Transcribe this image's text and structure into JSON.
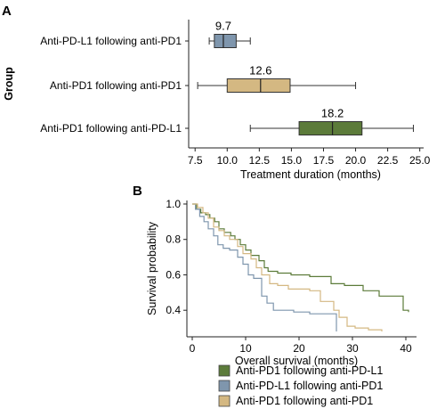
{
  "chart_data": [
    {
      "type": "boxplot",
      "panel_label": "A",
      "orientation": "horizontal",
      "xlabel": "Treatment duration (months)",
      "ylabel": "Group",
      "xlim": [
        7.0,
        25.3
      ],
      "xticks": [
        "7.5",
        "10.0",
        "12.5",
        "15.0",
        "17.5",
        "20.0",
        "22.5",
        "25.0"
      ],
      "xtick_values": [
        7.5,
        10.0,
        12.5,
        15.0,
        17.5,
        20.0,
        22.5,
        25.0
      ],
      "grid": false,
      "boxes": [
        {
          "category": "Anti-PD-L1 following anti-PD1",
          "min": 8.6,
          "q1": 9.0,
          "median": 9.7,
          "q3": 10.7,
          "max": 11.8,
          "median_label": "9.7",
          "color": "#7f96ad"
        },
        {
          "category": "Anti-PD1 following anti-PD1",
          "min": 7.7,
          "q1": 10.0,
          "median": 12.6,
          "q3": 14.9,
          "max": 20.0,
          "median_label": "12.6",
          "color": "#d4b882"
        },
        {
          "category": "Anti-PD1 following anti-PD-L1",
          "min": 11.8,
          "q1": 15.6,
          "median": 18.2,
          "q3": 20.5,
          "max": 24.5,
          "median_label": "18.2",
          "color": "#5c7b3a"
        }
      ]
    },
    {
      "type": "line",
      "step": true,
      "panel_label": "B",
      "xlabel": "Overall survival (months)",
      "ylabel": "Survival probability",
      "xlim": [
        -1,
        42
      ],
      "ylim": [
        0.25,
        1.02
      ],
      "xticks": [
        "0",
        "10",
        "20",
        "30",
        "40"
      ],
      "xtick_values": [
        0,
        10,
        20,
        30,
        40
      ],
      "yticks": [
        "0.4",
        "0.6",
        "0.8",
        "1.0"
      ],
      "ytick_values": [
        0.4,
        0.6,
        0.8,
        1.0
      ],
      "grid": false,
      "legend_position": "bottom",
      "series": [
        {
          "name": "Anti-PD1 following anti-PD-L1",
          "color": "#5c7b3a",
          "x": [
            0,
            0.8,
            1.6,
            2.5,
            3.3,
            4.2,
            5.0,
            6.0,
            7.2,
            8.0,
            9.0,
            10.0,
            11.0,
            12.5,
            13.5,
            14.2,
            16.0,
            18.5,
            22.0,
            26.0,
            28.5,
            32.0,
            35.0,
            37.0,
            39.5,
            40.5
          ],
          "y": [
            1.0,
            0.97,
            0.95,
            0.94,
            0.92,
            0.9,
            0.86,
            0.84,
            0.82,
            0.8,
            0.77,
            0.74,
            0.71,
            0.68,
            0.64,
            0.62,
            0.61,
            0.6,
            0.59,
            0.55,
            0.54,
            0.51,
            0.48,
            0.48,
            0.4,
            0.39
          ]
        },
        {
          "name": "Anti-PD-L1 following anti-PD1",
          "color": "#7f96ad",
          "x": [
            0,
            0.6,
            1.4,
            2.2,
            3.0,
            4.0,
            4.8,
            5.8,
            7.0,
            8.5,
            9.5,
            10.5,
            11.5,
            13.0,
            14.0,
            15.2,
            19.0,
            22.0,
            24.0,
            26.5,
            27.0
          ],
          "y": [
            1.0,
            0.97,
            0.93,
            0.9,
            0.86,
            0.82,
            0.77,
            0.75,
            0.74,
            0.7,
            0.66,
            0.6,
            0.58,
            0.48,
            0.44,
            0.4,
            0.39,
            0.38,
            0.38,
            0.38,
            0.28
          ]
        },
        {
          "name": "Anti-PD1 following anti-PD1",
          "color": "#d4b882",
          "x": [
            0,
            1.0,
            2.0,
            3.0,
            4.0,
            5.0,
            6.0,
            7.0,
            8.5,
            9.5,
            11.0,
            12.0,
            13.0,
            14.5,
            16.0,
            18.0,
            20.0,
            22.0,
            24.0,
            26.5,
            27.5,
            29.0,
            30.5,
            33.0,
            35.5
          ],
          "y": [
            1.0,
            0.98,
            0.95,
            0.92,
            0.87,
            0.85,
            0.82,
            0.8,
            0.76,
            0.72,
            0.69,
            0.64,
            0.6,
            0.55,
            0.54,
            0.52,
            0.52,
            0.51,
            0.45,
            0.4,
            0.36,
            0.31,
            0.3,
            0.29,
            0.28
          ]
        }
      ]
    }
  ]
}
